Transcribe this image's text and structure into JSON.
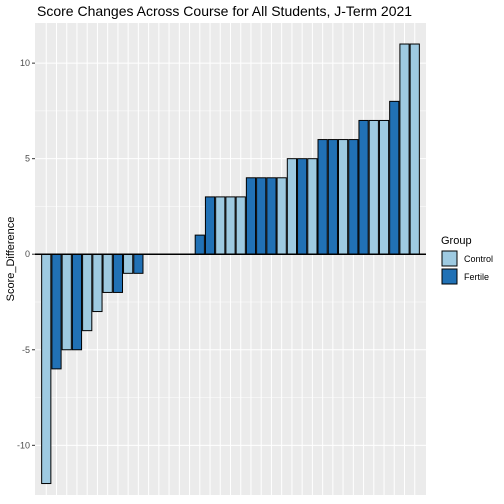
{
  "chart_data": {
    "type": "bar",
    "title": "Score Changes Across Course for All Students, J-Term 2021",
    "xlabel": "",
    "ylabel": "Score_Difference",
    "ylim": [
      -12.6,
      12.1
    ],
    "yticks": [
      -10,
      -5,
      0,
      5,
      10
    ],
    "grid": true,
    "legend": {
      "title": "Group",
      "position": "right",
      "entries": [
        {
          "label": "Control",
          "color": "#9ecae1"
        },
        {
          "label": "Fertile",
          "color": "#2171b5"
        }
      ]
    },
    "colors": {
      "Control": "#9ecae1",
      "Fertile": "#2171b5",
      "panel": "#ebebeb",
      "grid": "#ffffff",
      "bar_outline": "#000000"
    },
    "bars": [
      {
        "group": "Control",
        "value": -12
      },
      {
        "group": "Fertile",
        "value": -6
      },
      {
        "group": "Control",
        "value": -5
      },
      {
        "group": "Fertile",
        "value": -5
      },
      {
        "group": "Control",
        "value": -4
      },
      {
        "group": "Control",
        "value": -3
      },
      {
        "group": "Control",
        "value": -2
      },
      {
        "group": "Fertile",
        "value": -2
      },
      {
        "group": "Control",
        "value": -1
      },
      {
        "group": "Fertile",
        "value": -1
      },
      {
        "group": "Control",
        "value": 0
      },
      {
        "group": "Control",
        "value": 0
      },
      {
        "group": "Control",
        "value": 0
      },
      {
        "group": "Control",
        "value": 0
      },
      {
        "group": "Control",
        "value": 0
      },
      {
        "group": "Fertile",
        "value": 1
      },
      {
        "group": "Fertile",
        "value": 3
      },
      {
        "group": "Control",
        "value": 3
      },
      {
        "group": "Control",
        "value": 3
      },
      {
        "group": "Control",
        "value": 3
      },
      {
        "group": "Fertile",
        "value": 4
      },
      {
        "group": "Fertile",
        "value": 4
      },
      {
        "group": "Fertile",
        "value": 4
      },
      {
        "group": "Control",
        "value": 4
      },
      {
        "group": "Control",
        "value": 5
      },
      {
        "group": "Fertile",
        "value": 5
      },
      {
        "group": "Control",
        "value": 5
      },
      {
        "group": "Fertile",
        "value": 6
      },
      {
        "group": "Fertile",
        "value": 6
      },
      {
        "group": "Control",
        "value": 6
      },
      {
        "group": "Fertile",
        "value": 6
      },
      {
        "group": "Fertile",
        "value": 7
      },
      {
        "group": "Control",
        "value": 7
      },
      {
        "group": "Control",
        "value": 7
      },
      {
        "group": "Fertile",
        "value": 8
      },
      {
        "group": "Control",
        "value": 11
      },
      {
        "group": "Control",
        "value": 11
      }
    ]
  }
}
